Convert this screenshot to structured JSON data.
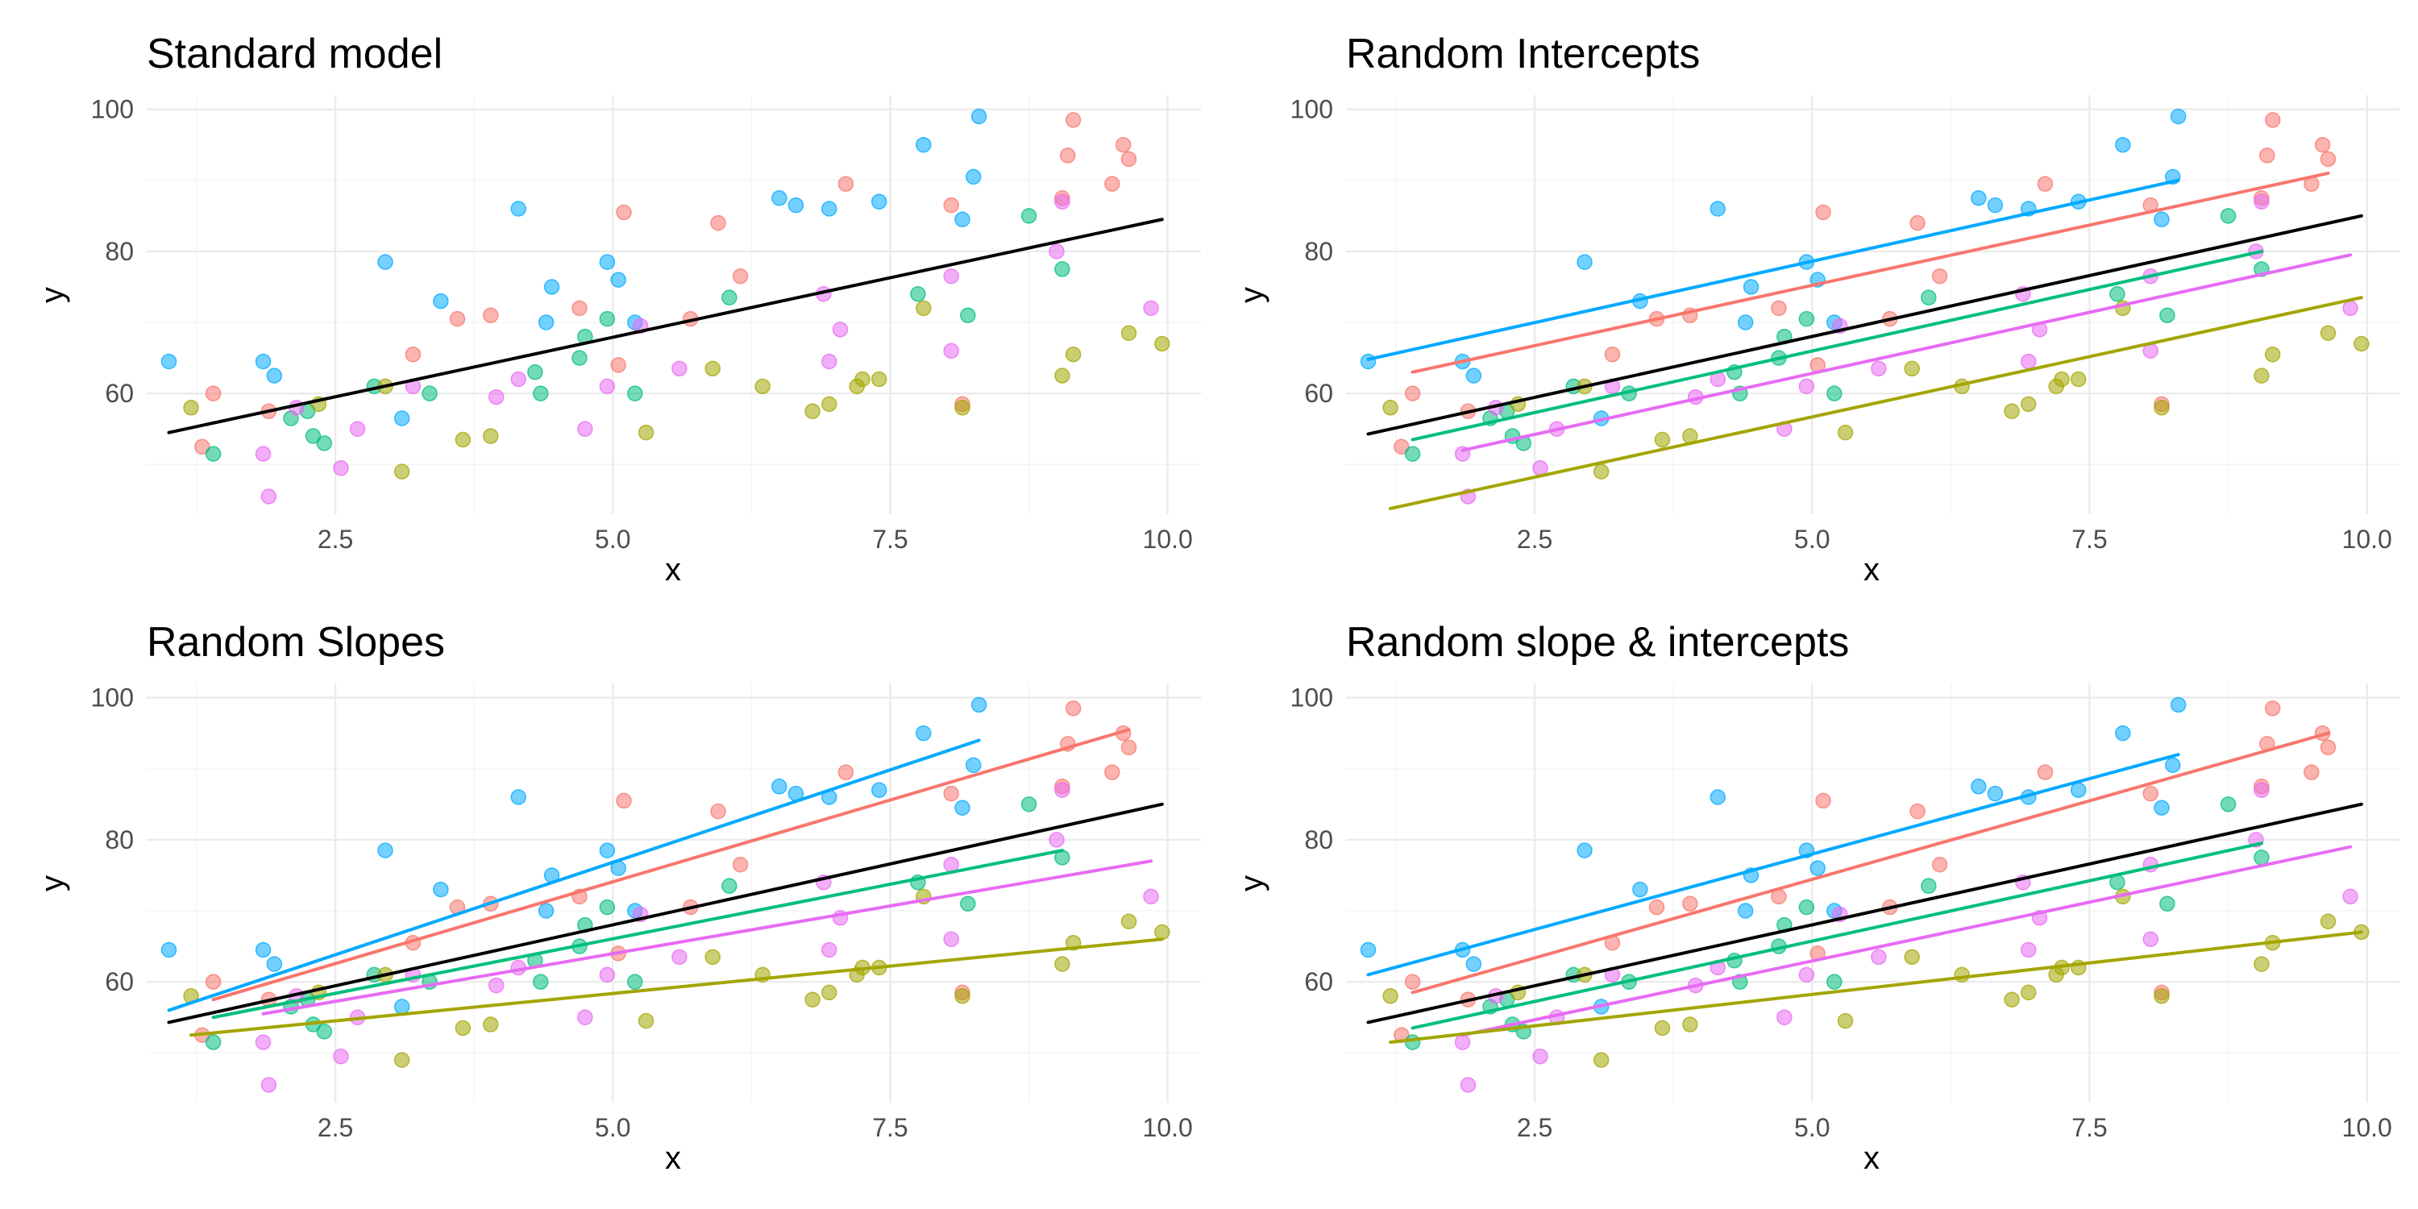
{
  "chart_data": [
    {
      "type": "scatter",
      "title": "Standard model",
      "xlabel": "x",
      "ylabel": "y",
      "xlim": [
        0.8,
        10.3
      ],
      "ylim": [
        43,
        102
      ],
      "x_ticks": [
        2.5,
        5.0,
        7.5,
        10.0
      ],
      "x_tick_labels": [
        "2.5",
        "5.0",
        "7.5",
        "10.0"
      ],
      "y_ticks": [
        60,
        80,
        100
      ],
      "y_tick_labels": [
        "60",
        "80",
        "100"
      ],
      "grid": true,
      "legend": "none",
      "lines": [
        {
          "group": "overall",
          "x": [
            1.0,
            9.95
          ],
          "y": [
            54.5,
            84.5
          ]
        }
      ]
    },
    {
      "type": "scatter",
      "title": "Random Intercepts",
      "xlabel": "x",
      "ylabel": "y",
      "xlim": [
        0.8,
        10.3
      ],
      "ylim": [
        43,
        102
      ],
      "x_ticks": [
        2.5,
        5.0,
        7.5,
        10.0
      ],
      "x_tick_labels": [
        "2.5",
        "5.0",
        "7.5",
        "10.0"
      ],
      "y_ticks": [
        60,
        80,
        100
      ],
      "y_tick_labels": [
        "60",
        "80",
        "100"
      ],
      "grid": true,
      "legend": "none",
      "lines": [
        {
          "group": "overall",
          "x": [
            1.0,
            9.95
          ],
          "y": [
            54.3,
            85.0
          ]
        },
        {
          "group": "blue",
          "x": [
            1.0,
            8.3
          ],
          "y": [
            64.8,
            90.0
          ]
        },
        {
          "group": "red",
          "x": [
            1.4,
            9.65
          ],
          "y": [
            63.0,
            91.0
          ]
        },
        {
          "group": "green",
          "x": [
            1.4,
            9.05
          ],
          "y": [
            53.5,
            80.0
          ]
        },
        {
          "group": "magenta",
          "x": [
            1.85,
            9.85
          ],
          "y": [
            52.0,
            79.5
          ]
        },
        {
          "group": "olive",
          "x": [
            1.2,
            9.95
          ],
          "y": [
            43.8,
            73.5
          ]
        }
      ]
    },
    {
      "type": "scatter",
      "title": "Random Slopes",
      "xlabel": "x",
      "ylabel": "y",
      "xlim": [
        0.8,
        10.3
      ],
      "ylim": [
        43,
        102
      ],
      "x_ticks": [
        2.5,
        5.0,
        7.5,
        10.0
      ],
      "x_tick_labels": [
        "2.5",
        "5.0",
        "7.5",
        "10.0"
      ],
      "y_ticks": [
        60,
        80,
        100
      ],
      "y_tick_labels": [
        "60",
        "80",
        "100"
      ],
      "grid": true,
      "legend": "none",
      "lines": [
        {
          "group": "overall",
          "x": [
            1.0,
            9.95
          ],
          "y": [
            54.3,
            85.0
          ]
        },
        {
          "group": "blue",
          "x": [
            1.0,
            8.3
          ],
          "y": [
            56.0,
            94.0
          ]
        },
        {
          "group": "red",
          "x": [
            1.4,
            9.65
          ],
          "y": [
            57.5,
            95.5
          ]
        },
        {
          "group": "green",
          "x": [
            1.4,
            9.05
          ],
          "y": [
            55.0,
            78.5
          ]
        },
        {
          "group": "magenta",
          "x": [
            1.85,
            9.85
          ],
          "y": [
            55.5,
            77.0
          ]
        },
        {
          "group": "olive",
          "x": [
            1.2,
            9.95
          ],
          "y": [
            52.5,
            66.0
          ]
        }
      ]
    },
    {
      "type": "scatter",
      "title": "Random slope & intercepts",
      "xlabel": "x",
      "ylabel": "y",
      "xlim": [
        0.8,
        10.3
      ],
      "ylim": [
        43,
        102
      ],
      "x_ticks": [
        2.5,
        5.0,
        7.5,
        10.0
      ],
      "x_tick_labels": [
        "2.5",
        "5.0",
        "7.5",
        "10.0"
      ],
      "y_ticks": [
        60,
        80,
        100
      ],
      "y_tick_labels": [
        "60",
        "80",
        "100"
      ],
      "grid": true,
      "legend": "none",
      "lines": [
        {
          "group": "overall",
          "x": [
            1.0,
            9.95
          ],
          "y": [
            54.3,
            85.0
          ]
        },
        {
          "group": "blue",
          "x": [
            1.0,
            8.3
          ],
          "y": [
            61.0,
            92.0
          ]
        },
        {
          "group": "red",
          "x": [
            1.4,
            9.65
          ],
          "y": [
            58.5,
            95.0
          ]
        },
        {
          "group": "green",
          "x": [
            1.4,
            9.05
          ],
          "y": [
            53.5,
            79.5
          ]
        },
        {
          "group": "magenta",
          "x": [
            1.85,
            9.85
          ],
          "y": [
            52.5,
            79.0
          ]
        },
        {
          "group": "olive",
          "x": [
            1.2,
            9.95
          ],
          "y": [
            51.5,
            67.0
          ]
        }
      ]
    }
  ],
  "shared_points": {
    "blue": [
      [
        1.0,
        64.5
      ],
      [
        1.85,
        64.5
      ],
      [
        1.95,
        62.5
      ],
      [
        2.95,
        78.5
      ],
      [
        3.1,
        56.5
      ],
      [
        3.45,
        73.0
      ],
      [
        4.15,
        86.0
      ],
      [
        4.4,
        70.0
      ],
      [
        4.45,
        75.0
      ],
      [
        4.95,
        78.5
      ],
      [
        5.05,
        76.0
      ],
      [
        5.2,
        70.0
      ],
      [
        6.5,
        87.5
      ],
      [
        6.65,
        86.5
      ],
      [
        6.95,
        86.0
      ],
      [
        7.4,
        87.0
      ],
      [
        7.8,
        95.0
      ],
      [
        8.15,
        84.5
      ],
      [
        8.25,
        90.5
      ],
      [
        8.3,
        99.0
      ]
    ],
    "red": [
      [
        1.3,
        52.5
      ],
      [
        1.4,
        60.0
      ],
      [
        1.9,
        57.5
      ],
      [
        3.2,
        65.5
      ],
      [
        3.6,
        70.5
      ],
      [
        3.9,
        71.0
      ],
      [
        4.7,
        72.0
      ],
      [
        5.05,
        64.0
      ],
      [
        5.1,
        85.5
      ],
      [
        5.7,
        70.5
      ],
      [
        5.95,
        84.0
      ],
      [
        6.15,
        76.5
      ],
      [
        7.1,
        89.5
      ],
      [
        8.05,
        86.5
      ],
      [
        8.15,
        58.5
      ],
      [
        9.05,
        87.5
      ],
      [
        9.1,
        93.5
      ],
      [
        9.15,
        98.5
      ],
      [
        9.5,
        89.5
      ],
      [
        9.6,
        95.0
      ],
      [
        9.65,
        93.0
      ]
    ],
    "green": [
      [
        1.4,
        51.5
      ],
      [
        2.1,
        56.5
      ],
      [
        2.25,
        57.5
      ],
      [
        2.3,
        54.0
      ],
      [
        2.4,
        53.0
      ],
      [
        2.85,
        61.0
      ],
      [
        3.35,
        60.0
      ],
      [
        4.3,
        63.0
      ],
      [
        4.35,
        60.0
      ],
      [
        4.7,
        65.0
      ],
      [
        4.75,
        68.0
      ],
      [
        4.95,
        70.5
      ],
      [
        5.2,
        60.0
      ],
      [
        6.05,
        73.5
      ],
      [
        7.75,
        74.0
      ],
      [
        8.2,
        71.0
      ],
      [
        8.75,
        85.0
      ],
      [
        9.05,
        77.5
      ]
    ],
    "magenta": [
      [
        1.85,
        51.5
      ],
      [
        1.9,
        45.5
      ],
      [
        2.15,
        58.0
      ],
      [
        2.55,
        49.5
      ],
      [
        2.7,
        55.0
      ],
      [
        3.2,
        61.0
      ],
      [
        3.95,
        59.5
      ],
      [
        4.15,
        62.0
      ],
      [
        4.75,
        55.0
      ],
      [
        4.95,
        61.0
      ],
      [
        5.25,
        69.5
      ],
      [
        5.6,
        63.5
      ],
      [
        6.9,
        74.0
      ],
      [
        6.95,
        64.5
      ],
      [
        7.05,
        69.0
      ],
      [
        8.05,
        66.0
      ],
      [
        8.05,
        76.5
      ],
      [
        9.0,
        80.0
      ],
      [
        9.05,
        87.0
      ],
      [
        9.85,
        72.0
      ]
    ],
    "olive": [
      [
        1.2,
        58.0
      ],
      [
        2.35,
        58.5
      ],
      [
        2.95,
        61.0
      ],
      [
        3.1,
        49.0
      ],
      [
        3.65,
        53.5
      ],
      [
        3.9,
        54.0
      ],
      [
        5.3,
        54.5
      ],
      [
        5.9,
        63.5
      ],
      [
        6.35,
        61.0
      ],
      [
        6.8,
        57.5
      ],
      [
        6.95,
        58.5
      ],
      [
        7.2,
        61.0
      ],
      [
        7.25,
        62.0
      ],
      [
        7.4,
        62.0
      ],
      [
        7.8,
        72.0
      ],
      [
        8.15,
        58.0
      ],
      [
        9.05,
        62.5
      ],
      [
        9.15,
        65.5
      ],
      [
        9.65,
        68.5
      ],
      [
        9.95,
        67.0
      ]
    ]
  },
  "colors": {
    "overall": "#000000",
    "blue": "#00A9FF",
    "red": "#F8766D",
    "green": "#00BE7D",
    "magenta": "#E76BF3",
    "olive": "#A3A500"
  }
}
